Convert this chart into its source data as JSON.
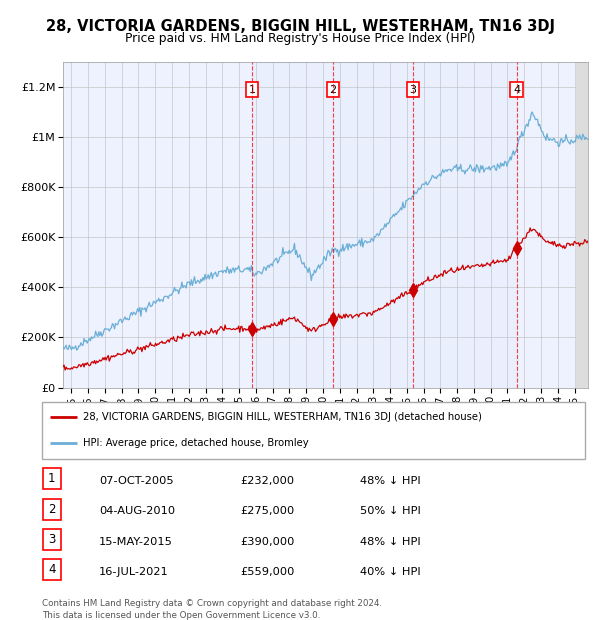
{
  "title": "28, VICTORIA GARDENS, BIGGIN HILL, WESTERHAM, TN16 3DJ",
  "subtitle": "Price paid vs. HM Land Registry's House Price Index (HPI)",
  "legend_red": "28, VICTORIA GARDENS, BIGGIN HILL, WESTERHAM, TN16 3DJ (detached house)",
  "legend_blue": "HPI: Average price, detached house, Bromley",
  "footer": "Contains HM Land Registry data © Crown copyright and database right 2024.\nThis data is licensed under the Open Government Licence v3.0.",
  "transactions": [
    {
      "num": "1",
      "date": "07-OCT-2005",
      "price": "£232,000",
      "pct": "48% ↓ HPI",
      "x_year": 2005.77,
      "price_val": 232000
    },
    {
      "num": "2",
      "date": "04-AUG-2010",
      "price": "£275,000",
      "pct": "50% ↓ HPI",
      "x_year": 2010.59,
      "price_val": 275000
    },
    {
      "num": "3",
      "date": "15-MAY-2015",
      "price": "£390,000",
      "pct": "48% ↓ HPI",
      "x_year": 2015.37,
      "price_val": 390000
    },
    {
      "num": "4",
      "date": "16-JUL-2021",
      "price": "£559,000",
      "pct": "40% ↓ HPI",
      "x_year": 2021.54,
      "price_val": 559000
    }
  ],
  "hpi_color": "#6baed6",
  "price_color": "#cc0000",
  "bg_color": "#eef2ff",
  "grid_color": "#bbbbbb",
  "ylim": [
    0,
    1300000
  ],
  "yticks": [
    0,
    200000,
    400000,
    600000,
    800000,
    1000000,
    1200000
  ],
  "xlim": [
    1994.5,
    2025.8
  ],
  "x_ticks": [
    1995,
    1996,
    1997,
    1998,
    1999,
    2000,
    2001,
    2002,
    2003,
    2004,
    2005,
    2006,
    2007,
    2008,
    2009,
    2010,
    2011,
    2012,
    2013,
    2014,
    2015,
    2016,
    2017,
    2018,
    2019,
    2020,
    2021,
    2022,
    2023,
    2024,
    2025
  ]
}
